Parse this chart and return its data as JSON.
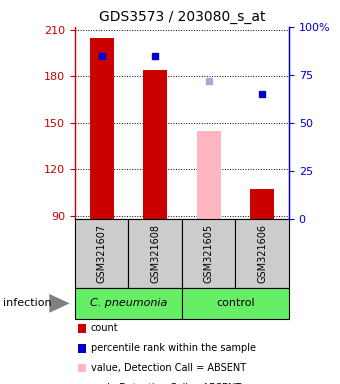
{
  "title": "GDS3573 / 203080_s_at",
  "samples": [
    "GSM321607",
    "GSM321608",
    "GSM321605",
    "GSM321606"
  ],
  "count_values": [
    205,
    184,
    null,
    107
  ],
  "count_absent_values": [
    null,
    null,
    145,
    null
  ],
  "percentile_values": [
    85,
    85,
    null,
    65
  ],
  "percentile_absent_values": [
    null,
    null,
    72,
    null
  ],
  "ylim_left": [
    88,
    212
  ],
  "ylim_right": [
    0,
    100
  ],
  "yticks_left": [
    90,
    120,
    150,
    180,
    210
  ],
  "yticks_right": [
    0,
    25,
    50,
    75,
    100
  ],
  "yticklabels_right": [
    "0",
    "25",
    "50",
    "75",
    "100%"
  ],
  "group_bg_color": "#66EE66",
  "sample_bg_color": "#CCCCCC",
  "bar_color": "#CC0000",
  "bar_absent_color": "#FFB6C1",
  "dot_color": "#0000CC",
  "dot_absent_color": "#AAAADD",
  "left_axis_color": "#CC0000",
  "right_axis_color": "#0000CC",
  "infection_label": "infection",
  "legend_items": [
    {
      "label": "count",
      "color": "#CC0000"
    },
    {
      "label": "percentile rank within the sample",
      "color": "#0000CC"
    },
    {
      "label": "value, Detection Call = ABSENT",
      "color": "#FFB6C1"
    },
    {
      "label": "rank, Detection Call = ABSENT",
      "color": "#AAAADD"
    }
  ]
}
